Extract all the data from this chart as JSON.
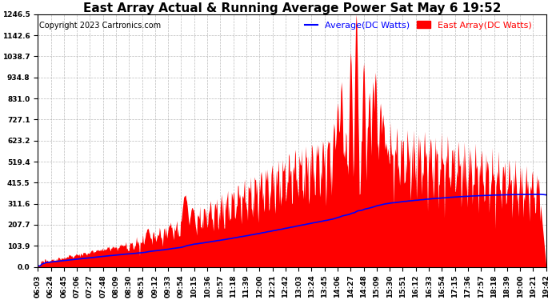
{
  "title": "East Array Actual & Running Average Power Sat May 6 19:52",
  "copyright": "Copyright 2023 Cartronics.com",
  "legend_average": "Average(DC Watts)",
  "legend_east": "East Array(DC Watts)",
  "yticks": [
    0.0,
    103.9,
    207.7,
    311.6,
    415.5,
    519.4,
    623.2,
    727.1,
    831.0,
    934.8,
    1038.7,
    1142.6,
    1246.5
  ],
  "ymax": 1246.5,
  "ymin": 0.0,
  "background_color": "#ffffff",
  "grid_color": "#aaaaaa",
  "fill_color": "#ff0000",
  "line_color": "#0000ff",
  "title_fontsize": 11,
  "copyright_fontsize": 7,
  "legend_fontsize": 8,
  "tick_fontsize": 6.5,
  "xtick_labels": [
    "06:03",
    "06:24",
    "06:45",
    "07:06",
    "07:27",
    "07:48",
    "08:09",
    "08:30",
    "08:51",
    "09:12",
    "09:33",
    "09:54",
    "10:15",
    "10:36",
    "10:57",
    "11:18",
    "11:39",
    "12:00",
    "12:21",
    "12:42",
    "13:03",
    "13:24",
    "13:45",
    "14:06",
    "14:27",
    "14:48",
    "15:09",
    "15:30",
    "15:51",
    "16:12",
    "16:33",
    "16:54",
    "17:15",
    "17:36",
    "17:57",
    "18:18",
    "18:39",
    "19:00",
    "19:21",
    "19:42"
  ]
}
